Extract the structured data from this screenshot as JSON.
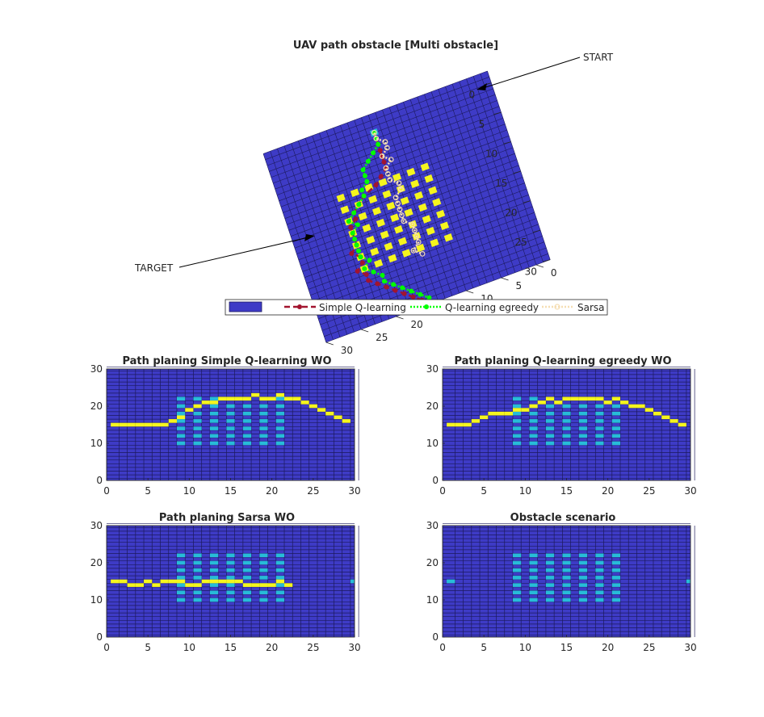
{
  "chart_data": [
    {
      "type": "surface3d",
      "title": "UAV path obstacle [Multi obstacle]",
      "grid_size": 30,
      "x_ticks": [
        "0",
        "5",
        "10",
        "15",
        "20",
        "25",
        "30"
      ],
      "y_ticks": [
        "0",
        "5",
        "10",
        "15",
        "20",
        "25",
        "30"
      ],
      "obstacle_cells": [
        [
          10,
          9
        ],
        [
          10,
          11
        ],
        [
          10,
          13
        ],
        [
          10,
          15
        ],
        [
          10,
          17
        ],
        [
          10,
          19
        ],
        [
          10,
          21
        ],
        [
          12,
          9
        ],
        [
          12,
          11
        ],
        [
          12,
          13
        ],
        [
          12,
          15
        ],
        [
          12,
          17
        ],
        [
          12,
          19
        ],
        [
          12,
          21
        ],
        [
          14,
          9
        ],
        [
          14,
          11
        ],
        [
          14,
          13
        ],
        [
          14,
          15
        ],
        [
          14,
          17
        ],
        [
          14,
          19
        ],
        [
          14,
          21
        ],
        [
          16,
          9
        ],
        [
          16,
          11
        ],
        [
          16,
          13
        ],
        [
          16,
          15
        ],
        [
          16,
          17
        ],
        [
          16,
          19
        ],
        [
          16,
          21
        ],
        [
          18,
          9
        ],
        [
          18,
          11
        ],
        [
          18,
          13
        ],
        [
          18,
          15
        ],
        [
          18,
          17
        ],
        [
          18,
          19
        ],
        [
          18,
          21
        ],
        [
          20,
          9
        ],
        [
          20,
          11
        ],
        [
          20,
          13
        ],
        [
          20,
          15
        ],
        [
          20,
          17
        ],
        [
          20,
          19
        ],
        [
          20,
          21
        ],
        [
          22,
          9
        ],
        [
          22,
          11
        ],
        [
          22,
          13
        ],
        [
          22,
          15
        ],
        [
          22,
          17
        ],
        [
          22,
          19
        ],
        [
          22,
          21
        ]
      ],
      "start_cell": [
        15,
        1
      ],
      "target_cell": [
        16,
        29
      ],
      "annotations": {
        "start": "START",
        "target": "TARGET"
      },
      "legend": {
        "entries": [
          {
            "label": "Simple Q-learning",
            "color": "#a2142f",
            "style": "dashed"
          },
          {
            "label": "Q-learning egreedy",
            "color": "#00ff00",
            "style": "dotted"
          },
          {
            "label": "Sarsa",
            "color": "#f5deb3",
            "style": "dotted"
          }
        ],
        "placement": "bottom-center"
      },
      "series": [
        {
          "name": "Simple Q-learning",
          "path": [
            [
              15,
              1
            ],
            [
              15,
              2
            ],
            [
              15,
              3
            ],
            [
              15,
              4
            ],
            [
              15,
              5
            ],
            [
              15,
              6
            ],
            [
              15,
              7
            ],
            [
              16,
              8
            ],
            [
              17,
              9
            ],
            [
              19,
              10
            ],
            [
              20,
              11
            ],
            [
              21,
              12
            ],
            [
              21,
              13
            ],
            [
              22,
              14
            ],
            [
              22,
              15
            ],
            [
              22,
              16
            ],
            [
              22,
              17
            ],
            [
              23,
              18
            ],
            [
              22,
              19
            ],
            [
              22,
              20
            ],
            [
              23,
              21
            ],
            [
              22,
              22
            ],
            [
              22,
              23
            ],
            [
              21,
              24
            ],
            [
              20,
              25
            ],
            [
              19,
              26
            ],
            [
              18,
              27
            ],
            [
              17,
              28
            ],
            [
              16,
              29
            ]
          ]
        },
        {
          "name": "Q-learning egreedy",
          "path": [
            [
              15,
              1
            ],
            [
              15,
              2
            ],
            [
              15,
              3
            ],
            [
              16,
              4
            ],
            [
              17,
              5
            ],
            [
              18,
              6
            ],
            [
              18,
              7
            ],
            [
              18,
              8
            ],
            [
              19,
              9
            ],
            [
              19,
              10
            ],
            [
              20,
              11
            ],
            [
              21,
              12
            ],
            [
              22,
              13
            ],
            [
              21,
              14
            ],
            [
              22,
              15
            ],
            [
              22,
              16
            ],
            [
              22,
              17
            ],
            [
              22,
              18
            ],
            [
              22,
              19
            ],
            [
              21,
              20
            ],
            [
              22,
              21
            ],
            [
              21,
              22
            ],
            [
              20,
              23
            ],
            [
              20,
              24
            ],
            [
              19,
              25
            ],
            [
              18,
              26
            ],
            [
              17,
              27
            ],
            [
              16,
              28
            ],
            [
              15,
              29
            ]
          ]
        },
        {
          "name": "Sarsa",
          "path": [
            [
              15,
              1
            ],
            [
              15,
              2
            ],
            [
              14,
              3
            ],
            [
              14,
              4
            ],
            [
              15,
              5
            ],
            [
              14,
              6
            ],
            [
              15,
              7
            ],
            [
              15,
              8
            ],
            [
              15,
              9
            ],
            [
              14,
              10
            ],
            [
              14,
              11
            ],
            [
              15,
              12
            ],
            [
              15,
              13
            ],
            [
              15,
              14
            ],
            [
              15,
              15
            ],
            [
              15,
              16
            ],
            [
              14,
              17
            ],
            [
              14,
              18
            ],
            [
              14,
              19
            ],
            [
              14,
              20
            ],
            [
              15,
              21
            ],
            [
              14,
              22
            ]
          ]
        }
      ]
    },
    {
      "type": "heatmap",
      "title": "Path planing Simple Q-learning WO",
      "xlim": [
        0,
        30
      ],
      "ylim": [
        0,
        30
      ],
      "x_ticks": [
        "0",
        "5",
        "10",
        "15",
        "20",
        "25",
        "30"
      ],
      "y_ticks": [
        "0",
        "10",
        "20",
        "30"
      ],
      "path_series": "Simple Q-learning",
      "show_obstacles": true,
      "marks": [],
      "colors": {
        "background": "#3e3bc6",
        "grid": "#1c1a5c",
        "path": "#f5f51e",
        "obstacle": "#27bcd8"
      }
    },
    {
      "type": "heatmap",
      "title": "Path planing Q-learning egreedy WO",
      "xlim": [
        0,
        30
      ],
      "ylim": [
        0,
        30
      ],
      "x_ticks": [
        "0",
        "5",
        "10",
        "15",
        "20",
        "25",
        "30"
      ],
      "y_ticks": [
        "0",
        "10",
        "20",
        "30"
      ],
      "path_series": "Q-learning egreedy",
      "show_obstacles": true,
      "marks": [],
      "colors": {
        "background": "#3e3bc6",
        "grid": "#1c1a5c",
        "path": "#f5f51e",
        "obstacle": "#27bcd8"
      }
    },
    {
      "type": "heatmap",
      "title": "Path planing Sarsa WO",
      "xlim": [
        0,
        30
      ],
      "ylim": [
        0,
        30
      ],
      "x_ticks": [
        "0",
        "5",
        "10",
        "15",
        "20",
        "25",
        "30"
      ],
      "y_ticks": [
        "0",
        "10",
        "20",
        "30"
      ],
      "path_series": "Sarsa",
      "show_obstacles": true,
      "marks": [
        [
          30,
          15
        ]
      ],
      "colors": {
        "background": "#3e3bc6",
        "grid": "#1c1a5c",
        "path": "#f5f51e",
        "obstacle": "#27bcd8"
      }
    },
    {
      "type": "heatmap",
      "title": "Obstacle scenario",
      "xlim": [
        0,
        30
      ],
      "ylim": [
        0,
        30
      ],
      "x_ticks": [
        "0",
        "5",
        "10",
        "15",
        "20",
        "25",
        "30"
      ],
      "y_ticks": [
        "0",
        "10",
        "20",
        "30"
      ],
      "path_series": null,
      "show_obstacles": true,
      "marks": [
        [
          1,
          15
        ],
        [
          30,
          15
        ]
      ],
      "colors": {
        "background": "#3e3bc6",
        "grid": "#1c1a5c",
        "path": "#f5f51e",
        "obstacle": "#27bcd8"
      }
    }
  ]
}
